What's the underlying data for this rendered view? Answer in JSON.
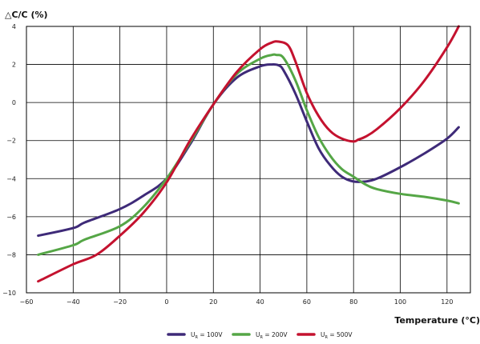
{
  "chart_data": {
    "type": "line",
    "title": "",
    "ylabel": "△C/C (%)",
    "xlabel": "Temperature (°C)",
    "xlim": [
      -60,
      130
    ],
    "ylim": [
      -10,
      4
    ],
    "x_ticks": [
      -60,
      -40,
      -20,
      0,
      20,
      40,
      60,
      80,
      100,
      120
    ],
    "y_ticks": [
      -10,
      -8,
      -6,
      -4,
      -2,
      0,
      2,
      4
    ],
    "x_tick_labels": [
      "−60",
      "−40",
      "−20",
      "0",
      "20",
      "40",
      "60",
      "80",
      "100",
      "120"
    ],
    "y_tick_labels": [
      "−10",
      "−8",
      "−6",
      "−4",
      "−2",
      "0",
      "2",
      "4"
    ],
    "grid": true,
    "legend_position": "bottom-center",
    "series": [
      {
        "name": "U_R = 100V",
        "legend_main": "U",
        "legend_sub": "R",
        "legend_rest": " = 100V",
        "color": "#3e2a78",
        "x": [
          -55,
          -40,
          -35,
          -20,
          -10,
          0,
          10,
          20,
          30,
          40,
          45,
          48,
          50,
          55,
          60,
          65,
          70,
          75,
          80,
          85,
          90,
          100,
          110,
          120,
          125
        ],
        "y": [
          -7.0,
          -6.6,
          -6.3,
          -5.6,
          -4.9,
          -4.0,
          -2.2,
          -0.1,
          1.3,
          1.9,
          2.0,
          1.95,
          1.7,
          0.5,
          -1.0,
          -2.4,
          -3.3,
          -3.9,
          -4.15,
          -4.15,
          -4.0,
          -3.4,
          -2.7,
          -1.9,
          -1.3
        ]
      },
      {
        "name": "U_R = 200V",
        "legend_main": "U",
        "legend_sub": "R",
        "legend_rest": " = 200V",
        "color": "#55a646",
        "x": [
          -55,
          -40,
          -35,
          -20,
          -10,
          0,
          10,
          20,
          30,
          40,
          45,
          47,
          50,
          55,
          60,
          65,
          70,
          75,
          80,
          85,
          90,
          100,
          110,
          120,
          125
        ],
        "y": [
          -8.0,
          -7.5,
          -7.2,
          -6.5,
          -5.5,
          -4.0,
          -2.1,
          -0.1,
          1.5,
          2.3,
          2.5,
          2.5,
          2.35,
          1.2,
          -0.4,
          -1.8,
          -2.8,
          -3.5,
          -3.9,
          -4.3,
          -4.55,
          -4.8,
          -4.95,
          -5.15,
          -5.3
        ]
      },
      {
        "name": "U_R = 500V",
        "legend_main": "U",
        "legend_sub": "R",
        "legend_rest": " = 500V",
        "color": "#c4122f",
        "x": [
          -55,
          -40,
          -30,
          -20,
          -10,
          0,
          10,
          20,
          30,
          40,
          45,
          48,
          52,
          55,
          60,
          65,
          70,
          75,
          80,
          82,
          85,
          90,
          100,
          110,
          120,
          125
        ],
        "y": [
          -9.4,
          -8.5,
          -8.0,
          -7.0,
          -5.8,
          -4.2,
          -2.0,
          -0.1,
          1.6,
          2.8,
          3.15,
          3.2,
          3.0,
          2.2,
          0.5,
          -0.7,
          -1.5,
          -1.9,
          -2.05,
          -1.95,
          -1.8,
          -1.4,
          -0.3,
          1.1,
          2.9,
          4.0
        ]
      }
    ]
  }
}
